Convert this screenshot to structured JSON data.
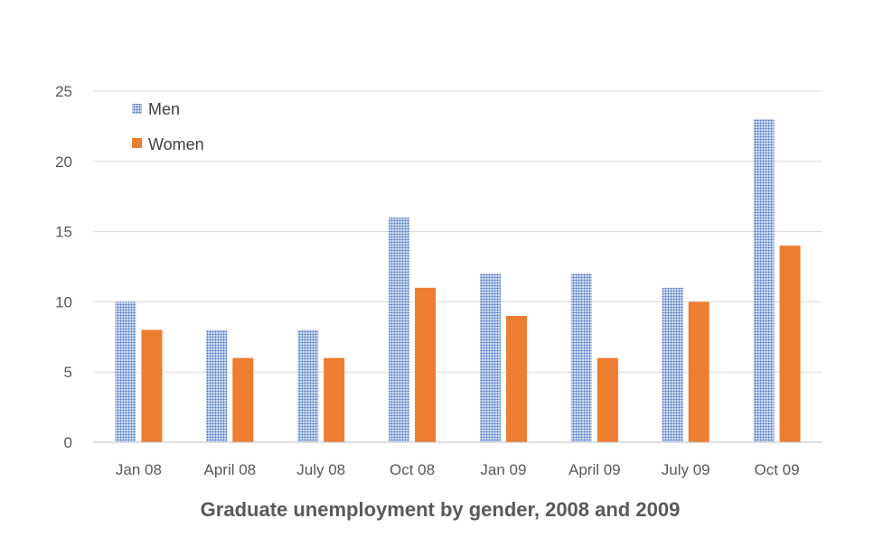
{
  "chart_data": {
    "type": "bar",
    "title": "Graduate unemployment by gender, 2008 and 2009",
    "categories": [
      "Jan 08",
      "April 08",
      "July 08",
      "Oct 08",
      "Jan 09",
      "April 09",
      "July 09",
      "Oct 09"
    ],
    "series": [
      {
        "name": "Men",
        "values": [
          10,
          8,
          8,
          16,
          12,
          12,
          11,
          23
        ],
        "color": "#4472c4",
        "pattern": "dotted"
      },
      {
        "name": "Women",
        "values": [
          8,
          6,
          6,
          11,
          9,
          6,
          10,
          14
        ],
        "color": "#ed7d31",
        "pattern": "solid"
      }
    ],
    "ylim": [
      0,
      25
    ],
    "yticks": [
      "0",
      "5",
      "10",
      "15",
      "20",
      "25"
    ],
    "grid": true,
    "legend": "top-left"
  }
}
